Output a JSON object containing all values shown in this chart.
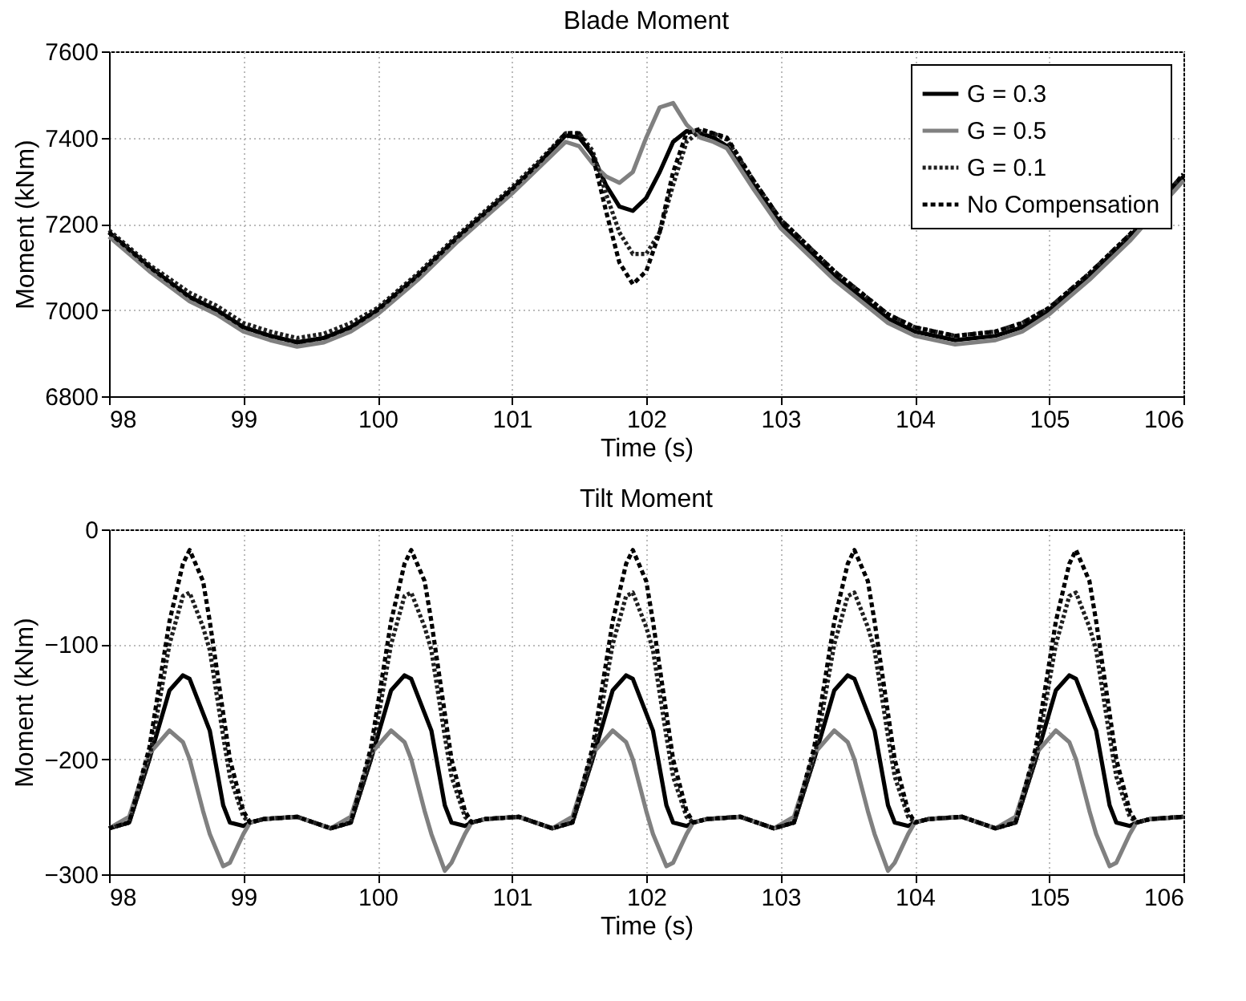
{
  "chart_data": [
    {
      "type": "line",
      "title": "Blade Moment",
      "xlabel": "Time (s)",
      "ylabel": "Moment (kNm)",
      "xlim": [
        98,
        106
      ],
      "xticks": [
        98,
        99,
        100,
        101,
        102,
        103,
        104,
        105,
        106
      ],
      "ylim": [
        6800,
        7600
      ],
      "yticks": [
        6800,
        7000,
        7200,
        7400,
        7600
      ],
      "grid": true,
      "legend": "top right",
      "x": [
        98,
        98.3,
        98.6,
        98.8,
        99,
        99.2,
        99.4,
        99.6,
        99.8,
        100,
        100.3,
        100.6,
        101,
        101.2,
        101.4,
        101.5,
        101.6,
        101.7,
        101.8,
        101.9,
        102,
        102.1,
        102.2,
        102.3,
        102.4,
        102.5,
        102.6,
        102.8,
        103,
        103.2,
        103.4,
        103.6,
        103.8,
        104,
        104.3,
        104.6,
        104.8,
        105,
        105.3,
        105.6,
        106
      ],
      "series": [
        {
          "name": "G = 0.3",
          "color": "#000000",
          "line_style": "solid",
          "values": [
            7180,
            7100,
            7030,
            7000,
            6960,
            6940,
            6925,
            6935,
            6960,
            7000,
            7080,
            7170,
            7280,
            7340,
            7405,
            7400,
            7360,
            7290,
            7240,
            7230,
            7260,
            7320,
            7390,
            7415,
            7410,
            7400,
            7380,
            7290,
            7200,
            7140,
            7080,
            7030,
            6980,
            6950,
            6930,
            6940,
            6960,
            7000,
            7080,
            7170,
            7310
          ]
        },
        {
          "name": "G = 0.5",
          "color": "#808080",
          "line_style": "solid",
          "values": [
            7170,
            7090,
            7020,
            6990,
            6950,
            6930,
            6915,
            6925,
            6950,
            6990,
            7070,
            7160,
            7270,
            7330,
            7390,
            7380,
            7340,
            7310,
            7295,
            7320,
            7400,
            7470,
            7480,
            7430,
            7400,
            7390,
            7375,
            7280,
            7190,
            7130,
            7070,
            7020,
            6970,
            6940,
            6920,
            6930,
            6950,
            6990,
            7070,
            7160,
            7300
          ]
        },
        {
          "name": "G = 0.1",
          "color": "#202020",
          "line_style": "dotted",
          "values": [
            7185,
            7105,
            7040,
            7010,
            6970,
            6950,
            6935,
            6945,
            6970,
            7005,
            7085,
            7175,
            7285,
            7345,
            7410,
            7410,
            7370,
            7270,
            7180,
            7130,
            7130,
            7180,
            7290,
            7390,
            7415,
            7410,
            7395,
            7300,
            7210,
            7150,
            7090,
            7040,
            6990,
            6960,
            6940,
            6950,
            6970,
            7005,
            7085,
            7175,
            7315
          ]
        },
        {
          "name": "No Compensation",
          "color": "#000000",
          "line_style": "dashed",
          "values": [
            7180,
            7100,
            7030,
            7000,
            6960,
            6940,
            6925,
            6935,
            6960,
            7000,
            7080,
            7170,
            7280,
            7340,
            7410,
            7410,
            7360,
            7230,
            7110,
            7060,
            7090,
            7180,
            7320,
            7410,
            7420,
            7410,
            7400,
            7300,
            7210,
            7150,
            7090,
            7040,
            6990,
            6960,
            6940,
            6950,
            6970,
            7005,
            7085,
            7175,
            7315
          ]
        }
      ]
    },
    {
      "type": "line",
      "title": "Tilt Moment",
      "xlabel": "Time (s)",
      "ylabel": "Moment (kNm)",
      "xlim": [
        98,
        106
      ],
      "xticks": [
        98,
        99,
        100,
        101,
        102,
        103,
        104,
        105,
        106
      ],
      "ylim": [
        -300,
        0
      ],
      "yticks": [
        -300,
        -200,
        -100,
        0
      ],
      "grid": true,
      "legend": "top right",
      "x": [
        98,
        98.15,
        98.3,
        98.45,
        98.55,
        98.6,
        98.7,
        98.75,
        98.85,
        98.9,
        99,
        99.05,
        99.15,
        99.4,
        99.65,
        99.8,
        99.95,
        100.1,
        100.2,
        100.25,
        100.35,
        100.4,
        100.5,
        100.55,
        100.65,
        100.7,
        100.8,
        101.05,
        101.3,
        101.45,
        101.6,
        101.75,
        101.85,
        101.9,
        102,
        102.05,
        102.15,
        102.2,
        102.3,
        102.35,
        102.45,
        102.7,
        102.95,
        103.1,
        103.25,
        103.4,
        103.5,
        103.55,
        103.65,
        103.7,
        103.8,
        103.85,
        103.95,
        104,
        104.1,
        104.35,
        104.6,
        104.75,
        104.9,
        105.05,
        105.15,
        105.2,
        105.3,
        105.35,
        105.45,
        105.5,
        105.6,
        105.65,
        105.75,
        106
      ],
      "series": [
        {
          "name": "G = 0.3",
          "color": "#000000",
          "line_style": "solid",
          "values": [
            -260,
            -255,
            -200,
            -140,
            -127,
            -130,
            -160,
            -175,
            -240,
            -255,
            -258,
            -255,
            -252,
            -250,
            -260,
            -255,
            -200,
            -140,
            -127,
            -130,
            -160,
            -175,
            -240,
            -255,
            -258,
            -255,
            -252,
            -250,
            -260,
            -255,
            -200,
            -140,
            -127,
            -130,
            -160,
            -175,
            -240,
            -255,
            -258,
            -255,
            -252,
            -250,
            -260,
            -255,
            -200,
            -140,
            -127,
            -130,
            -160,
            -175,
            -240,
            -255,
            -258,
            -255,
            -252,
            -250,
            -260,
            -255,
            -200,
            -140,
            -127,
            -130,
            -160,
            -175,
            -240,
            -255,
            -258,
            -255,
            -252,
            -250
          ]
        },
        {
          "name": "G = 0.5",
          "color": "#808080",
          "line_style": "solid",
          "values": [
            -260,
            -250,
            -195,
            -175,
            -185,
            -200,
            -245,
            -265,
            -293,
            -290,
            -265,
            -255,
            -252,
            -250,
            -260,
            -250,
            -195,
            -175,
            -185,
            -200,
            -245,
            -265,
            -297,
            -290,
            -265,
            -255,
            -252,
            -250,
            -260,
            -250,
            -195,
            -175,
            -185,
            -200,
            -245,
            -265,
            -293,
            -290,
            -265,
            -255,
            -252,
            -250,
            -260,
            -250,
            -195,
            -175,
            -185,
            -200,
            -245,
            -265,
            -297,
            -290,
            -265,
            -255,
            -252,
            -250,
            -260,
            -250,
            -195,
            -175,
            -185,
            -200,
            -245,
            -265,
            -293,
            -290,
            -265,
            -255,
            -252,
            -250
          ]
        },
        {
          "name": "G = 0.1",
          "color": "#202020",
          "line_style": "dotted",
          "values": [
            -260,
            -255,
            -200,
            -100,
            -58,
            -55,
            -85,
            -105,
            -180,
            -215,
            -250,
            -255,
            -252,
            -250,
            -260,
            -255,
            -200,
            -100,
            -58,
            -55,
            -85,
            -105,
            -180,
            -215,
            -250,
            -255,
            -252,
            -250,
            -260,
            -255,
            -200,
            -100,
            -58,
            -55,
            -85,
            -105,
            -180,
            -215,
            -250,
            -255,
            -252,
            -250,
            -260,
            -255,
            -200,
            -100,
            -58,
            -55,
            -85,
            -105,
            -180,
            -215,
            -250,
            -255,
            -252,
            -250,
            -260,
            -255,
            -200,
            -100,
            -58,
            -55,
            -85,
            -105,
            -180,
            -215,
            -250,
            -255,
            -252,
            -250
          ]
        },
        {
          "name": "No Compensation",
          "color": "#000000",
          "line_style": "dashed",
          "values": [
            -260,
            -255,
            -190,
            -80,
            -30,
            -18,
            -45,
            -80,
            -160,
            -200,
            -245,
            -255,
            -252,
            -250,
            -260,
            -255,
            -190,
            -80,
            -30,
            -18,
            -45,
            -80,
            -160,
            -200,
            -245,
            -255,
            -252,
            -250,
            -260,
            -255,
            -190,
            -80,
            -30,
            -18,
            -45,
            -80,
            -160,
            -200,
            -245,
            -255,
            -252,
            -250,
            -260,
            -255,
            -190,
            -80,
            -30,
            -18,
            -45,
            -80,
            -160,
            -200,
            -245,
            -255,
            -252,
            -250,
            -260,
            -255,
            -190,
            -80,
            -30,
            -18,
            -45,
            -80,
            -160,
            -200,
            -245,
            -255,
            -252,
            -250
          ]
        }
      ]
    }
  ]
}
